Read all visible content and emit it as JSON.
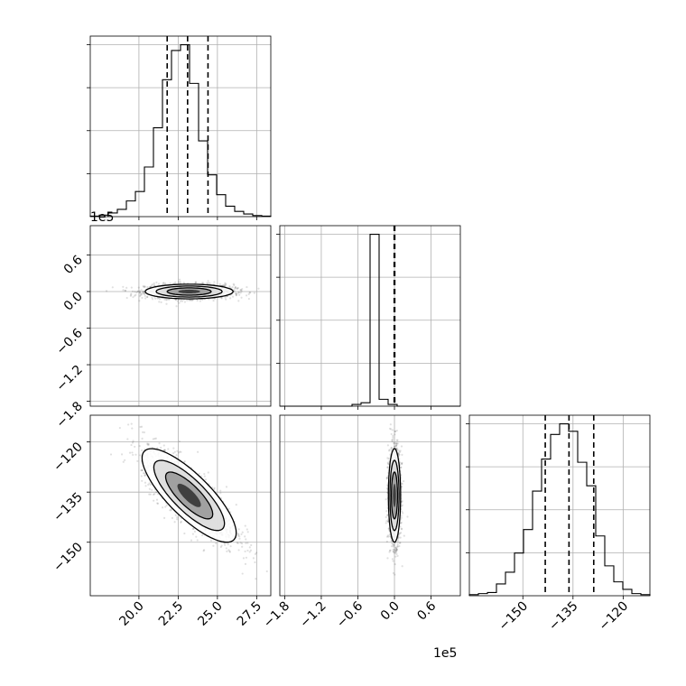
{
  "chart_data": {
    "type": "corner",
    "parameters": [
      {
        "name": "",
        "range": [
          16.9,
          28.4
        ],
        "quantiles": [
          21.8,
          23.1,
          24.4
        ]
      },
      {
        "name": "",
        "range": [
          -1.88,
          1.08
        ],
        "quantiles": [
          -0.005,
          0.0,
          0.005
        ]
      },
      {
        "name": "",
        "range": [
          -166.0,
          -112.0
        ],
        "quantiles": [
          -143.3,
          -136.2,
          -128.8
        ]
      }
    ],
    "histograms": [
      {
        "param": 0,
        "bin_start": 16.9,
        "bin_width": 0.575,
        "counts": [
          1,
          3,
          7,
          14,
          30,
          48,
          95,
          170,
          262,
          318,
          329,
          255,
          145,
          80,
          42,
          20,
          10,
          5,
          2,
          1
        ]
      },
      {
        "param": 1,
        "bin_start": -1.88,
        "bin_width": 0.148,
        "counts": [
          0,
          0,
          0,
          0,
          0,
          0,
          0,
          0,
          1,
          2,
          100,
          4,
          1,
          0,
          0,
          0,
          0,
          0,
          0,
          0
        ]
      },
      {
        "param": 2,
        "bin_start": -166.0,
        "bin_width": 2.7,
        "counts": [
          1,
          2,
          3,
          11,
          22,
          40,
          62,
          98,
          128,
          151,
          161,
          154,
          125,
          103,
          56,
          28,
          13,
          6,
          2,
          1
        ]
      }
    ],
    "joint": [
      {
        "x": 0,
        "y": 1,
        "center": [
          23.2,
          0.0
        ],
        "spread": [
          1.4,
          0.06
        ],
        "correlation": 0.0
      },
      {
        "x": 0,
        "y": 2,
        "center": [
          23.2,
          -136.0
        ],
        "spread": [
          1.5,
          7.0
        ],
        "correlation": -0.8
      },
      {
        "x": 1,
        "y": 2,
        "center": [
          0.0,
          -136.0
        ],
        "spread": [
          0.05,
          7.0
        ],
        "correlation": 0.0
      }
    ],
    "axes": {
      "x_ticks": [
        [
          "20.0",
          "22.5",
          "25.0",
          "27.5"
        ],
        [
          "−1.8",
          "−1.2",
          "−0.6",
          "0.0",
          "0.6"
        ],
        [
          "−150",
          "−135",
          "−120"
        ]
      ],
      "y_ticks": {
        "row1": [
          "0.6",
          "0.0",
          "−0.6",
          "−1.2",
          "−1.8"
        ],
        "row2": [
          "−120",
          "−135",
          "−150"
        ]
      },
      "x_tick_values": [
        [
          20.0,
          22.5,
          25.0,
          27.5
        ],
        [
          -1.8,
          -1.2,
          -0.6,
          0.0,
          0.6
        ],
        [
          -150,
          -135,
          -120
        ]
      ],
      "y_tick_values": {
        "row1": [
          0.6,
          0.0,
          -0.6,
          -1.2,
          -1.8
        ],
        "row2": [
          -120,
          -135,
          -150
        ]
      },
      "grid": true
    },
    "offset_labels": {
      "row1_y": "1e5",
      "col1_x": "1e5"
    },
    "colors": {
      "line": "#000000",
      "grid": "#b0b0b0",
      "points": "#000000"
    }
  }
}
